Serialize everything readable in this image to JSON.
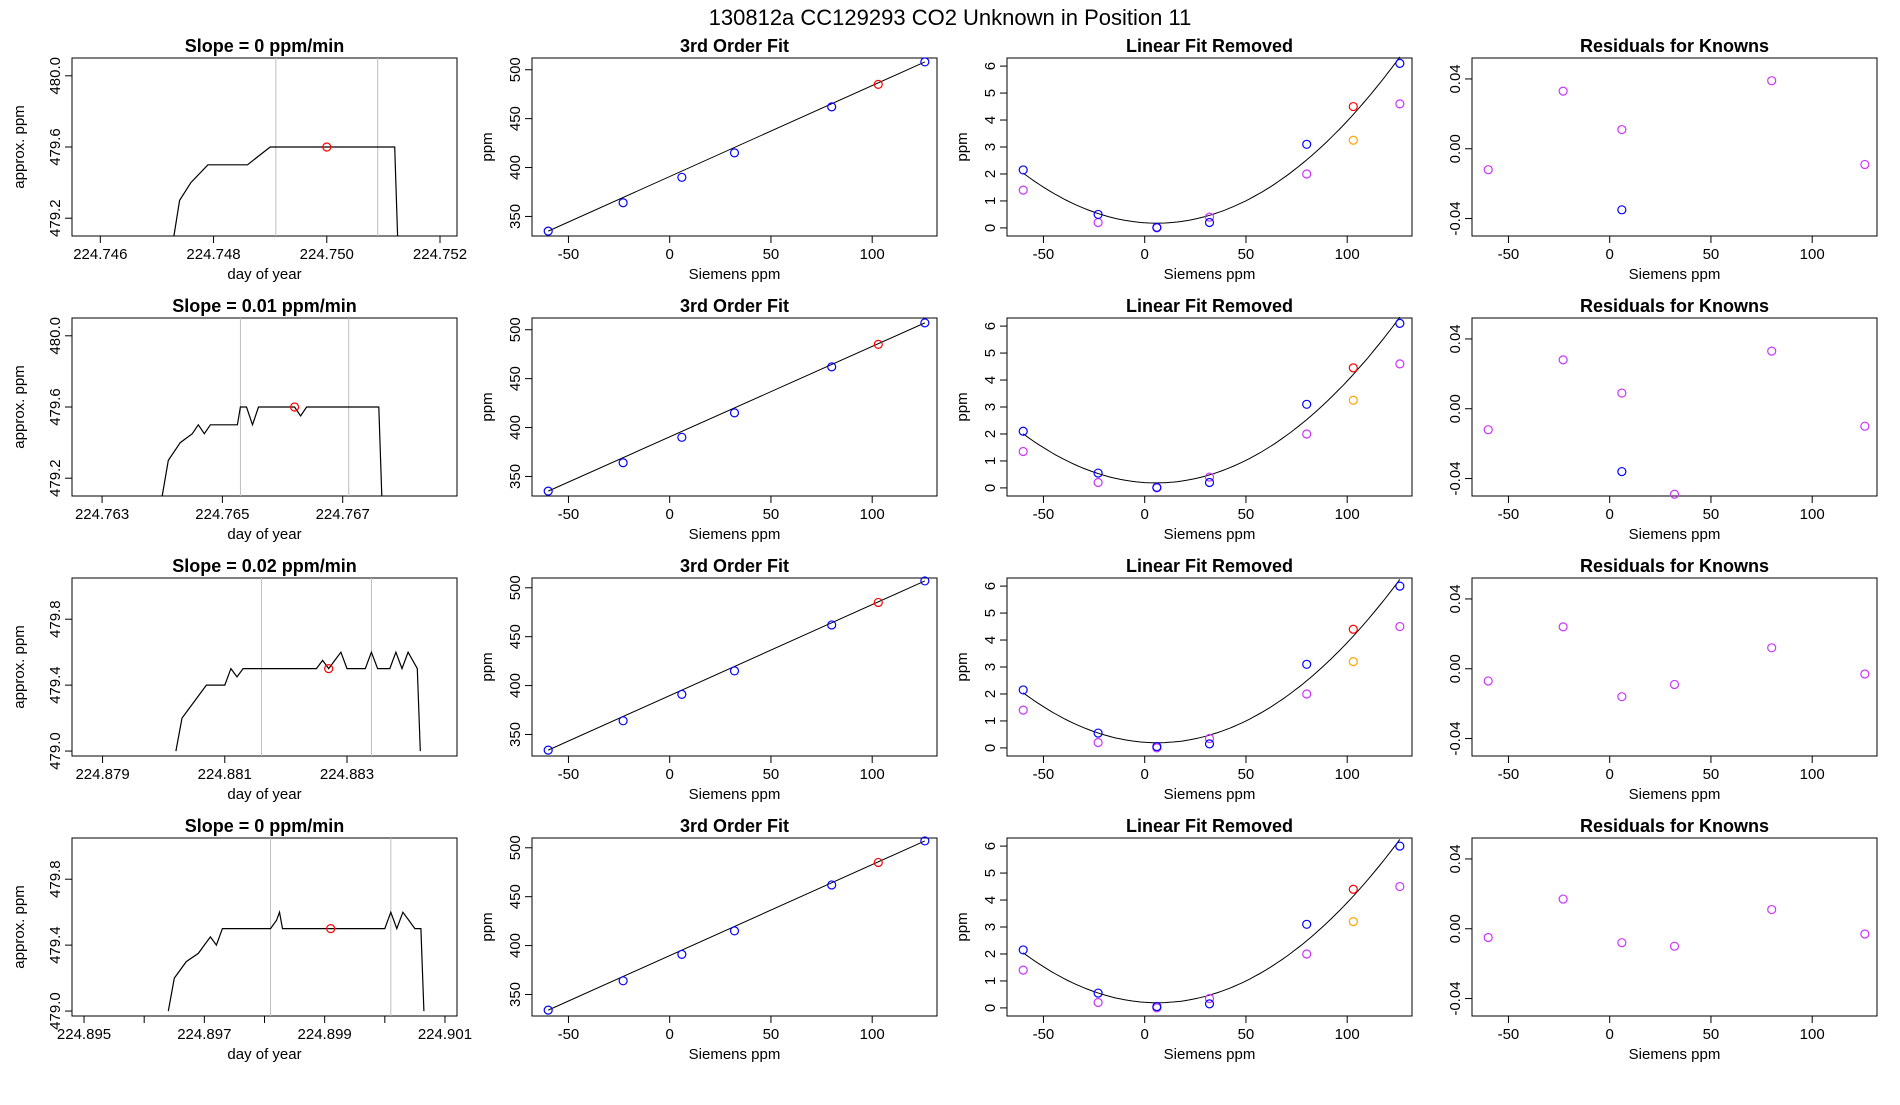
{
  "page_title": "130812a      CC129293    CO2 Unknown in Position  11",
  "colors": {
    "known": "#0000ff",
    "unknown": "#ff0000",
    "resid": "#cc33ff",
    "orange": "#ffa500",
    "grey": "#bebebe"
  },
  "chart_data": [
    {
      "type": "line",
      "kind": "slope",
      "title": "Slope =  0  ppm/min",
      "xlabel": "day of year",
      "ylabel": "approx. ppm",
      "xlim": [
        224.7455,
        224.7523
      ],
      "ylim": [
        479.1,
        480.1
      ],
      "xticks": [
        224.746,
        224.748,
        224.75,
        224.752
      ],
      "xticklabels": [
        "224.746",
        "224.748",
        "224.750",
        "224.752"
      ],
      "yticks": [
        479.2,
        479.6,
        480.0
      ],
      "yticklabels": [
        "479.2",
        "479.6",
        "480.0"
      ],
      "vlines": [
        224.7491,
        224.7509
      ],
      "line": [
        [
          224.7473,
          479.1
        ],
        [
          224.7474,
          479.3
        ],
        [
          224.7476,
          479.4
        ],
        [
          224.7479,
          479.5
        ],
        [
          224.7486,
          479.5
        ],
        [
          224.7488,
          479.55
        ],
        [
          224.749,
          479.6
        ],
        [
          224.7492,
          479.6
        ],
        [
          224.7512,
          479.6
        ],
        [
          224.75125,
          479.1
        ]
      ],
      "marker": [
        224.75,
        479.6
      ]
    },
    {
      "type": "scatter",
      "kind": "fit",
      "title": "3rd Order Fit",
      "xlabel": "Siemens ppm",
      "ylabel": "ppm",
      "xlim": [
        -68,
        132
      ],
      "ylim": [
        330,
        512
      ],
      "xticks": [
        -50,
        0,
        50,
        100
      ],
      "yticks": [
        350,
        400,
        450,
        500
      ],
      "known": [
        [
          -60,
          335
        ],
        [
          -23,
          364
        ],
        [
          6,
          390
        ],
        [
          32,
          415
        ],
        [
          80,
          462
        ],
        [
          126,
          508
        ]
      ],
      "unknown": [
        [
          103,
          485
        ]
      ]
    },
    {
      "type": "scatter",
      "kind": "linres",
      "title": "Linear Fit Removed",
      "xlabel": "Siemens ppm",
      "ylabel": "ppm",
      "xlim": [
        -68,
        132
      ],
      "ylim": [
        -0.3,
        6.3
      ],
      "xticks": [
        -50,
        0,
        50,
        100
      ],
      "yticks": [
        0,
        1,
        2,
        3,
        4,
        5,
        6
      ],
      "known": [
        [
          -60,
          2.15
        ],
        [
          -23,
          0.5
        ],
        [
          6,
          0.02
        ],
        [
          32,
          0.2
        ],
        [
          80,
          3.1
        ],
        [
          126,
          6.1
        ]
      ],
      "unknown": [
        [
          103,
          4.5
        ]
      ],
      "purple": [
        [
          -60,
          1.4
        ],
        [
          -23,
          0.2
        ],
        [
          6,
          0.0
        ],
        [
          32,
          0.4
        ],
        [
          80,
          2.0
        ],
        [
          126,
          4.6
        ]
      ],
      "orange": [
        [
          103,
          3.25
        ]
      ]
    },
    {
      "type": "scatter",
      "kind": "resid",
      "title": "Residuals for Knowns",
      "xlabel": "Siemens ppm",
      "ylabel": "",
      "xlim": [
        -68,
        132
      ],
      "ylim": [
        -0.05,
        0.052
      ],
      "xticks": [
        -50,
        0,
        50,
        100
      ],
      "yticks": [
        -0.04,
        0.0,
        0.04
      ],
      "yticklabels": [
        "-0.04",
        "0.00",
        "0.04"
      ],
      "purple": [
        [
          -60,
          -0.012
        ],
        [
          -23,
          0.033
        ],
        [
          6,
          0.011
        ],
        [
          80,
          0.039
        ],
        [
          126,
          -0.009
        ]
      ],
      "blue": [
        [
          6,
          -0.035
        ]
      ]
    },
    {
      "type": "line",
      "kind": "slope",
      "title": "Slope =  0.01  ppm/min",
      "xlabel": "day of year",
      "ylabel": "approx. ppm",
      "xlim": [
        224.7625,
        224.7689
      ],
      "ylim": [
        479.1,
        480.1
      ],
      "xticks": [
        224.763,
        224.765,
        224.767
      ],
      "xticklabels": [
        "224.763",
        "224.765",
        "224.767"
      ],
      "yticks": [
        479.2,
        479.6,
        480.0
      ],
      "yticklabels": [
        "479.2",
        "479.6",
        "480.0"
      ],
      "vlines": [
        224.7653,
        224.7671
      ],
      "line": [
        [
          224.764,
          479.1
        ],
        [
          224.7641,
          479.3
        ],
        [
          224.7643,
          479.4
        ],
        [
          224.7645,
          479.45
        ],
        [
          224.7646,
          479.5
        ],
        [
          224.7647,
          479.45
        ],
        [
          224.7648,
          479.5
        ],
        [
          224.76525,
          479.5
        ],
        [
          224.7653,
          479.6
        ],
        [
          224.7654,
          479.6
        ],
        [
          224.7655,
          479.5
        ],
        [
          224.7656,
          479.6
        ],
        [
          224.7662,
          479.6
        ],
        [
          224.7663,
          479.55
        ],
        [
          224.7664,
          479.6
        ],
        [
          224.7676,
          479.6
        ],
        [
          224.76765,
          479.1
        ]
      ],
      "marker": [
        224.7662,
        479.6
      ]
    },
    {
      "type": "scatter",
      "kind": "fit",
      "title": "3rd Order Fit",
      "xlabel": "Siemens ppm",
      "ylabel": "ppm",
      "xlim": [
        -68,
        132
      ],
      "ylim": [
        330,
        512
      ],
      "xticks": [
        -50,
        0,
        50,
        100
      ],
      "yticks": [
        350,
        400,
        450,
        500
      ],
      "known": [
        [
          -60,
          335
        ],
        [
          -23,
          364
        ],
        [
          6,
          390
        ],
        [
          32,
          415
        ],
        [
          80,
          462
        ],
        [
          126,
          507
        ]
      ],
      "unknown": [
        [
          103,
          485
        ]
      ]
    },
    {
      "type": "scatter",
      "kind": "linres",
      "title": "Linear Fit Removed",
      "xlabel": "Siemens ppm",
      "ylabel": "ppm",
      "xlim": [
        -68,
        132
      ],
      "ylim": [
        -0.3,
        6.3
      ],
      "xticks": [
        -50,
        0,
        50,
        100
      ],
      "yticks": [
        0,
        1,
        2,
        3,
        4,
        5,
        6
      ],
      "known": [
        [
          -60,
          2.1
        ],
        [
          -23,
          0.55
        ],
        [
          6,
          0.02
        ],
        [
          32,
          0.2
        ],
        [
          80,
          3.1
        ],
        [
          126,
          6.1
        ]
      ],
      "unknown": [
        [
          103,
          4.45
        ]
      ],
      "purple": [
        [
          -60,
          1.35
        ],
        [
          -23,
          0.2
        ],
        [
          6,
          0.0
        ],
        [
          32,
          0.4
        ],
        [
          80,
          2.0
        ],
        [
          126,
          4.6
        ]
      ],
      "orange": [
        [
          103,
          3.25
        ]
      ]
    },
    {
      "type": "scatter",
      "kind": "resid",
      "title": "Residuals for Knowns",
      "xlabel": "Siemens ppm",
      "ylabel": "",
      "xlim": [
        -68,
        132
      ],
      "ylim": [
        -0.05,
        0.052
      ],
      "xticks": [
        -50,
        0,
        50,
        100
      ],
      "yticks": [
        -0.04,
        0.0,
        0.04
      ],
      "yticklabels": [
        "-0.04",
        "0.00",
        "0.04"
      ],
      "purple": [
        [
          -60,
          -0.012
        ],
        [
          -23,
          0.028
        ],
        [
          6,
          0.009
        ],
        [
          32,
          -0.049
        ],
        [
          80,
          0.033
        ],
        [
          126,
          -0.01
        ]
      ],
      "blue": [
        [
          6,
          -0.036
        ]
      ]
    },
    {
      "type": "line",
      "kind": "slope",
      "title": "Slope =  0.02  ppm/min",
      "xlabel": "day of year",
      "ylabel": "approx. ppm",
      "xlim": [
        224.8785,
        224.8848
      ],
      "ylim": [
        478.97,
        480.05
      ],
      "xticks": [
        224.879,
        224.881,
        224.883
      ],
      "xticklabels": [
        "224.879",
        "224.881",
        "224.883"
      ],
      "yticks": [
        479.0,
        479.4,
        479.8
      ],
      "yticklabels": [
        "479.0",
        "479.4",
        "479.8"
      ],
      "vlines": [
        224.8816,
        224.8834
      ],
      "line": [
        [
          224.8802,
          479.0
        ],
        [
          224.8803,
          479.2
        ],
        [
          224.8805,
          479.3
        ],
        [
          224.8807,
          479.4
        ],
        [
          224.881,
          479.4
        ],
        [
          224.8811,
          479.5
        ],
        [
          224.8812,
          479.45
        ],
        [
          224.8813,
          479.5
        ],
        [
          224.8825,
          479.5
        ],
        [
          224.8826,
          479.55
        ],
        [
          224.8827,
          479.5
        ],
        [
          224.8828,
          479.55
        ],
        [
          224.8829,
          479.6
        ],
        [
          224.883,
          479.5
        ],
        [
          224.8833,
          479.5
        ],
        [
          224.8834,
          479.6
        ],
        [
          224.8835,
          479.5
        ],
        [
          224.8837,
          479.5
        ],
        [
          224.8838,
          479.6
        ],
        [
          224.8839,
          479.5
        ],
        [
          224.884,
          479.6
        ],
        [
          224.88415,
          479.5
        ],
        [
          224.8842,
          479.0
        ]
      ],
      "marker": [
        224.8827,
        479.5
      ]
    },
    {
      "type": "scatter",
      "kind": "fit",
      "title": "3rd Order Fit",
      "xlabel": "Siemens ppm",
      "ylabel": "ppm",
      "xlim": [
        -68,
        132
      ],
      "ylim": [
        328,
        510
      ],
      "xticks": [
        -50,
        0,
        50,
        100
      ],
      "yticks": [
        350,
        400,
        450,
        500
      ],
      "known": [
        [
          -60,
          334
        ],
        [
          -23,
          364
        ],
        [
          6,
          391
        ],
        [
          32,
          415
        ],
        [
          80,
          462
        ],
        [
          126,
          507
        ]
      ],
      "unknown": [
        [
          103,
          485
        ]
      ]
    },
    {
      "type": "scatter",
      "kind": "linres",
      "title": "Linear Fit Removed",
      "xlabel": "Siemens ppm",
      "ylabel": "ppm",
      "xlim": [
        -68,
        132
      ],
      "ylim": [
        -0.3,
        6.3
      ],
      "xticks": [
        -50,
        0,
        50,
        100
      ],
      "yticks": [
        0,
        1,
        2,
        3,
        4,
        5,
        6
      ],
      "known": [
        [
          -60,
          2.15
        ],
        [
          -23,
          0.55
        ],
        [
          6,
          0.05
        ],
        [
          32,
          0.15
        ],
        [
          80,
          3.1
        ],
        [
          126,
          6.0
        ]
      ],
      "unknown": [
        [
          103,
          4.4
        ]
      ],
      "purple": [
        [
          -60,
          1.4
        ],
        [
          -23,
          0.2
        ],
        [
          6,
          0.0
        ],
        [
          32,
          0.35
        ],
        [
          80,
          2.0
        ],
        [
          126,
          4.5
        ]
      ],
      "orange": [
        [
          103,
          3.2
        ]
      ]
    },
    {
      "type": "scatter",
      "kind": "resid",
      "title": "Residuals for Knowns",
      "xlabel": "Siemens ppm",
      "ylabel": "",
      "xlim": [
        -68,
        132
      ],
      "ylim": [
        -0.05,
        0.052
      ],
      "xticks": [
        -50,
        0,
        50,
        100
      ],
      "yticks": [
        -0.04,
        0.0,
        0.04
      ],
      "yticklabels": [
        "-0.04",
        "0.00",
        "0.04"
      ],
      "purple": [
        [
          -60,
          -0.007
        ],
        [
          -23,
          0.024
        ],
        [
          6,
          -0.016
        ],
        [
          32,
          -0.009
        ],
        [
          80,
          0.012
        ],
        [
          126,
          -0.003
        ]
      ],
      "blue": []
    },
    {
      "type": "line",
      "kind": "slope",
      "title": "Slope =  0  ppm/min",
      "xlabel": "day of year",
      "ylabel": "approx. ppm",
      "xlim": [
        224.8948,
        224.9012
      ],
      "ylim": [
        478.97,
        480.05
      ],
      "xticks": [
        224.895,
        224.896,
        224.897,
        224.898,
        224.899,
        224.9,
        224.901
      ],
      "xticklabels": [
        "224.895",
        "",
        "224.897",
        "",
        "224.899",
        "",
        "224.901"
      ],
      "yticks": [
        479.0,
        479.4,
        479.8
      ],
      "yticklabels": [
        "479.0",
        "479.4",
        "479.8"
      ],
      "vlines": [
        224.8981,
        224.9001
      ],
      "line": [
        [
          224.8964,
          479.0
        ],
        [
          224.8965,
          479.2
        ],
        [
          224.8967,
          479.3
        ],
        [
          224.8969,
          479.35
        ],
        [
          224.897,
          479.4
        ],
        [
          224.8971,
          479.45
        ],
        [
          224.8972,
          479.4
        ],
        [
          224.8973,
          479.5
        ],
        [
          224.8981,
          479.5
        ],
        [
          224.8982,
          479.55
        ],
        [
          224.89825,
          479.6
        ],
        [
          224.8983,
          479.5
        ],
        [
          224.9,
          479.5
        ],
        [
          224.9001,
          479.6
        ],
        [
          224.9002,
          479.5
        ],
        [
          224.9003,
          479.6
        ],
        [
          224.9004,
          479.55
        ],
        [
          224.9005,
          479.5
        ],
        [
          224.9006,
          479.5
        ],
        [
          224.90065,
          479.0
        ]
      ],
      "marker": [
        224.8991,
        479.5
      ]
    },
    {
      "type": "scatter",
      "kind": "fit",
      "title": "3rd Order Fit",
      "xlabel": "Siemens ppm",
      "ylabel": "ppm",
      "xlim": [
        -68,
        132
      ],
      "ylim": [
        328,
        510
      ],
      "xticks": [
        -50,
        0,
        50,
        100
      ],
      "yticks": [
        350,
        400,
        450,
        500
      ],
      "known": [
        [
          -60,
          334
        ],
        [
          -23,
          364
        ],
        [
          6,
          391
        ],
        [
          32,
          415
        ],
        [
          80,
          462
        ],
        [
          126,
          507
        ]
      ],
      "unknown": [
        [
          103,
          485
        ]
      ]
    },
    {
      "type": "scatter",
      "kind": "linres",
      "title": "Linear Fit Removed",
      "xlabel": "Siemens ppm",
      "ylabel": "ppm",
      "xlim": [
        -68,
        132
      ],
      "ylim": [
        -0.3,
        6.3
      ],
      "xticks": [
        -50,
        0,
        50,
        100
      ],
      "yticks": [
        0,
        1,
        2,
        3,
        4,
        5,
        6
      ],
      "known": [
        [
          -60,
          2.15
        ],
        [
          -23,
          0.55
        ],
        [
          6,
          0.05
        ],
        [
          32,
          0.15
        ],
        [
          80,
          3.1
        ],
        [
          126,
          6.0
        ]
      ],
      "unknown": [
        [
          103,
          4.4
        ]
      ],
      "purple": [
        [
          -60,
          1.4
        ],
        [
          -23,
          0.2
        ],
        [
          6,
          0.0
        ],
        [
          32,
          0.35
        ],
        [
          80,
          2.0
        ],
        [
          126,
          4.5
        ]
      ],
      "orange": [
        [
          103,
          3.2
        ]
      ]
    },
    {
      "type": "scatter",
      "kind": "resid",
      "title": "Residuals for Knowns",
      "xlabel": "Siemens ppm",
      "ylabel": "",
      "xlim": [
        -68,
        132
      ],
      "ylim": [
        -0.05,
        0.052
      ],
      "xticks": [
        -50,
        0,
        50,
        100
      ],
      "yticks": [
        -0.04,
        0.0,
        0.04
      ],
      "yticklabels": [
        "-0.04",
        "0.00",
        "0.04"
      ],
      "purple": [
        [
          -60,
          -0.005
        ],
        [
          -23,
          0.017
        ],
        [
          6,
          -0.008
        ],
        [
          32,
          -0.01
        ],
        [
          80,
          0.011
        ],
        [
          126,
          -0.003
        ]
      ],
      "blue": []
    }
  ]
}
